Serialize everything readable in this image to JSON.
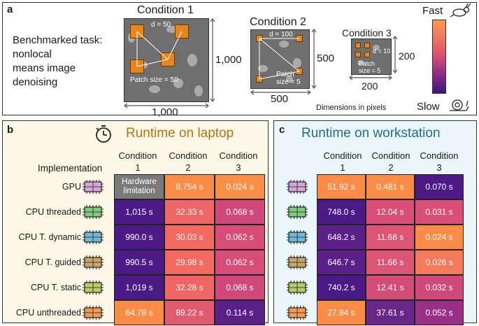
{
  "panel_a": {
    "label": "a",
    "task_text": [
      "Benchmarked task:",
      "nonlocal",
      "means image",
      "denoising"
    ],
    "conditions": [
      {
        "title": "Condition 1",
        "d_label": "d = 50",
        "patch_label": "Patch size = 50",
        "width_label": "1,000",
        "height_label": "1,000"
      },
      {
        "title": "Condition 2",
        "d_label": "d = 100",
        "patch_label": "Patch size = 5",
        "width_label": "500",
        "height_label": "500"
      },
      {
        "title": "Condition 3",
        "d_label": "d = 10",
        "patch_label": "Patch size = 5",
        "width_label": "200",
        "height_label": "200"
      }
    ],
    "dims_note": "Dimensions in pixels",
    "scale_fast": "Fast",
    "scale_slow": "Slow",
    "colors": {
      "fast": "#ff9a4a",
      "mid": "#d4477a",
      "slow": "#3b1580"
    }
  },
  "panel_b": {
    "label": "b",
    "title": "Runtime on laptop",
    "impl_header": "Implementation",
    "columns": [
      [
        "Condition",
        "1"
      ],
      [
        "Condition",
        "2"
      ],
      [
        "Condition",
        "3"
      ]
    ],
    "rows": [
      {
        "name": "GPU",
        "chip": "gpu",
        "cells": [
          "Hardware limitation",
          "8.754 s",
          "0.024 s"
        ],
        "colors": [
          "#7a7a7a",
          "#fb8c48",
          "#fb8f48"
        ]
      },
      {
        "name": "CPU threaded",
        "chip": "cpu-green",
        "cells": [
          "1,015 s",
          "32.33 s",
          "0.068 s"
        ],
        "colors": [
          "#4b1a86",
          "#f06666",
          "#d1487a"
        ]
      },
      {
        "name": "CPU T. dynamic",
        "chip": "cpu-blue",
        "cells": [
          "990.0 s",
          "30.03 s",
          "0.062 s"
        ],
        "colors": [
          "#4d1b87",
          "#f36a62",
          "#d84d77"
        ]
      },
      {
        "name": "CPU T. guided",
        "chip": "cpu-tan",
        "cells": [
          "990.5 s",
          "29.98 s",
          "0.062 s"
        ],
        "colors": [
          "#4d1b87",
          "#f36a62",
          "#d84d77"
        ]
      },
      {
        "name": "CPU T. static",
        "chip": "cpu-lime",
        "cells": [
          "1,019 s",
          "32.28 s",
          "0.068 s"
        ],
        "colors": [
          "#4b1a86",
          "#f06666",
          "#d1487a"
        ]
      },
      {
        "name": "CPU unthreaded",
        "chip": "cpu-orange",
        "cells": [
          "64.78 s",
          "89.22 s",
          "0.114 s"
        ],
        "colors": [
          "#fb8c48",
          "#e25a6e",
          "#5a2088"
        ]
      }
    ]
  },
  "panel_c": {
    "label": "c",
    "title": "Runtime on workstation",
    "columns": [
      [
        "Condition",
        "1"
      ],
      [
        "Condition",
        "2"
      ],
      [
        "Condition",
        "3"
      ]
    ],
    "rows": [
      {
        "chip": "gpu",
        "cells": [
          "51.92 s",
          "0.481 s",
          "0.070 s"
        ],
        "colors": [
          "#fb8c48",
          "#fb8c48",
          "#4b1a86"
        ]
      },
      {
        "chip": "cpu-green",
        "cells": [
          "748.0 s",
          "12.04 s",
          "0.031 s"
        ],
        "colors": [
          "#4b1a86",
          "#d94f76",
          "#d94f76"
        ]
      },
      {
        "chip": "cpu-blue",
        "cells": [
          "648.2 s",
          "11.68 s",
          "0.024 s"
        ],
        "colors": [
          "#5a2088",
          "#dd5574",
          "#fb8c48"
        ]
      },
      {
        "chip": "cpu-tan",
        "cells": [
          "646.7 s",
          "11.66 s",
          "0.026 s"
        ],
        "colors": [
          "#5a2088",
          "#dd5574",
          "#f47a5a"
        ]
      },
      {
        "chip": "cpu-lime",
        "cells": [
          "740.2 s",
          "12.41 s",
          "0.032 s"
        ],
        "colors": [
          "#4c1a86",
          "#d34c78",
          "#cf4a79"
        ]
      },
      {
        "chip": "cpu-orange",
        "cells": [
          "27.84 s",
          "37.61 s",
          "0.052 s"
        ],
        "colors": [
          "#fb8c48",
          "#6a2588",
          "#9a3085"
        ]
      }
    ]
  }
}
